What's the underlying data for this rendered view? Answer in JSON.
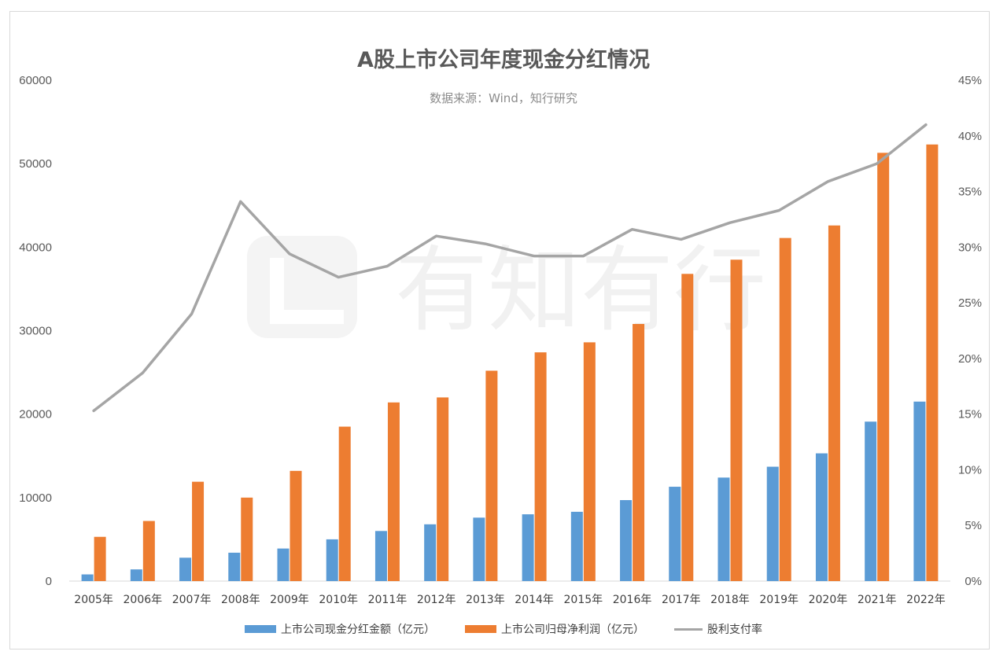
{
  "chart_data": {
    "type": "bar",
    "title": "A股上市公司年度现金分红情况",
    "subtitle": "数据来源：Wind，知行研究",
    "watermark": "有知有行",
    "categories": [
      "2005年",
      "2006年",
      "2007年",
      "2008年",
      "2009年",
      "2010年",
      "2011年",
      "2012年",
      "2013年",
      "2014年",
      "2015年",
      "2016年",
      "2017年",
      "2018年",
      "2019年",
      "2020年",
      "2021年",
      "2022年"
    ],
    "series": [
      {
        "name": "上市公司现金分红金额（亿元）",
        "type": "bar",
        "axis": "left",
        "color": "#5b9bd5",
        "values": [
          800,
          1400,
          2800,
          3400,
          3900,
          5000,
          6000,
          6800,
          7600,
          8000,
          8300,
          9700,
          11300,
          12400,
          13700,
          15300,
          19100,
          21500
        ]
      },
      {
        "name": "上市公司归母净利润（亿元）",
        "type": "bar",
        "axis": "left",
        "color": "#ed7d31",
        "values": [
          5300,
          7200,
          11900,
          10000,
          13200,
          18500,
          21400,
          22000,
          25200,
          27400,
          28600,
          30800,
          36800,
          38500,
          41100,
          42600,
          51300,
          52300
        ]
      },
      {
        "name": "股利支付率",
        "type": "line",
        "axis": "right",
        "color": "#a5a5a5",
        "values": [
          0.153,
          0.187,
          0.24,
          0.341,
          0.294,
          0.273,
          0.283,
          0.31,
          0.303,
          0.292,
          0.292,
          0.316,
          0.307,
          0.322,
          0.333,
          0.359,
          0.375,
          0.41
        ]
      }
    ],
    "left_axis": {
      "min": 0,
      "max": 60000,
      "ticks": [
        "0",
        "10000",
        "20000",
        "30000",
        "40000",
        "50000",
        "60000"
      ]
    },
    "right_axis": {
      "min": 0,
      "max": 0.45,
      "ticks": [
        "0%",
        "5%",
        "10%",
        "15%",
        "20%",
        "25%",
        "30%",
        "35%",
        "40%",
        "45%"
      ]
    },
    "grid": false,
    "legend_position": "bottom"
  }
}
